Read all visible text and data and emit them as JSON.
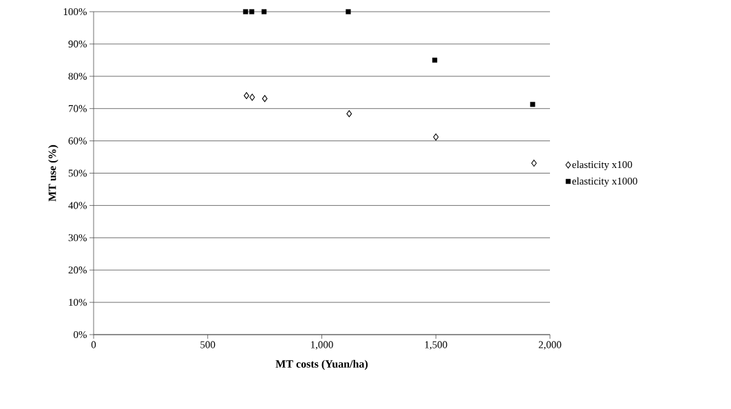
{
  "chart_data": {
    "type": "scatter",
    "xlabel": "MT costs (Yuan/ha)",
    "ylabel": "MT use (%)",
    "xlim": [
      0,
      2000
    ],
    "ylim": [
      0,
      100
    ],
    "xticks": [
      0,
      500,
      {
        "value": 1000,
        "label": "1,000"
      },
      {
        "value": 1500,
        "label": "1,500"
      },
      {
        "value": 2000,
        "label": "2,000"
      }
    ],
    "yticks": [
      {
        "value": 0,
        "label": "0%"
      },
      {
        "value": 10,
        "label": "10%"
      },
      {
        "value": 20,
        "label": "20%"
      },
      {
        "value": 30,
        "label": "30%"
      },
      {
        "value": 40,
        "label": "40%"
      },
      {
        "value": 50,
        "label": "50%"
      },
      {
        "value": 60,
        "label": "60%"
      },
      {
        "value": 70,
        "label": "70%"
      },
      {
        "value": 80,
        "label": "80%"
      },
      {
        "value": 90,
        "label": "90%"
      },
      {
        "value": 100,
        "label": "100%"
      }
    ],
    "grid": "y",
    "legend": "right",
    "series": [
      {
        "name": "elasticity x100",
        "color": "#000000",
        "marker": "diamond",
        "x": [
          670,
          695,
          750,
          1120,
          1500,
          1930
        ],
        "values": [
          74.0,
          73.5,
          73.1,
          68.4,
          61.2,
          53.1
        ]
      },
      {
        "name": "elasticity x1000",
        "color": "#000000",
        "marker": "square",
        "x": [
          666,
          693,
          747,
          1116,
          1495,
          1924
        ],
        "values": [
          100,
          100,
          100,
          100,
          85,
          71.3
        ]
      }
    ]
  }
}
